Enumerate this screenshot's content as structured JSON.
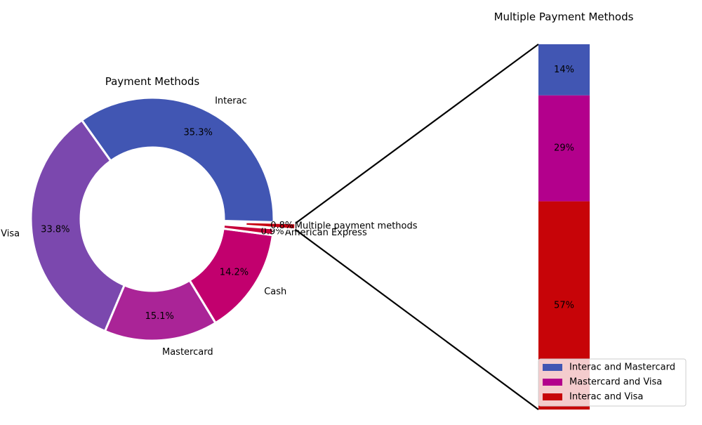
{
  "chart_data": [
    {
      "type": "pie",
      "style": "donut",
      "title": "Payment Methods",
      "slices": [
        {
          "label": "Interac",
          "percent": 35.3,
          "pct_label": "35.3%",
          "color": "#4156b3"
        },
        {
          "label": "Visa",
          "percent": 33.8,
          "pct_label": "33.8%",
          "color": "#7b48ae"
        },
        {
          "label": "Mastercard",
          "percent": 15.1,
          "pct_label": "15.1%",
          "color": "#aa2497"
        },
        {
          "label": "Cash",
          "percent": 14.2,
          "pct_label": "14.2%",
          "color": "#c2006e"
        },
        {
          "label": "American Express",
          "percent": 0.9,
          "pct_label": "0.9%",
          "color": "#c7003a"
        },
        {
          "label": "Multiple payment methods",
          "percent": 0.8,
          "pct_label": "0.8%",
          "color": "#c70011"
        }
      ]
    },
    {
      "type": "bar",
      "style": "stacked",
      "title": "Multiple Payment Methods",
      "series": [
        {
          "name": "Interac and Mastercard",
          "value": 14,
          "value_label": "14%",
          "color": "#4156b3"
        },
        {
          "name": "Mastercard and Visa",
          "value": 29,
          "value_label": "29%",
          "color": "#b3008c"
        },
        {
          "name": "Interac and Visa",
          "value": 57,
          "value_label": "57%",
          "color": "#c70408"
        }
      ],
      "legend_position": "lower-right"
    }
  ]
}
